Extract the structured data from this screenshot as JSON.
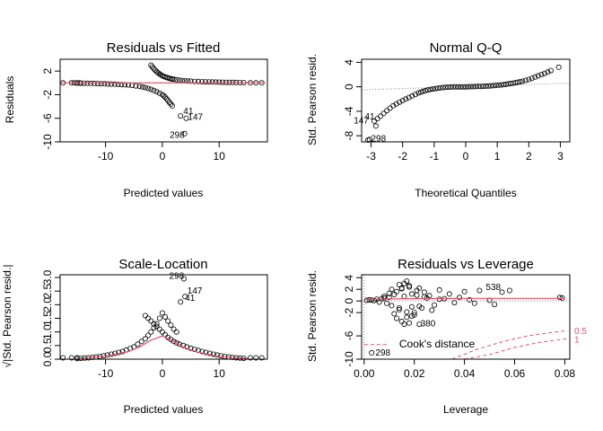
{
  "chart_data": [
    {
      "id": "rvf",
      "type": "scatter",
      "title": "Residuals vs Fitted",
      "xlabel": "Predicted values",
      "ylabel": "Residuals",
      "xlim": [
        -18,
        18.5
      ],
      "ylim": [
        -10,
        4
      ],
      "xticks": [
        -10,
        0,
        10
      ],
      "yticks": [
        -10,
        -6,
        -2,
        2
      ],
      "ref_lines": [
        {
          "y": 0,
          "style": "dotted",
          "color": "#888888"
        }
      ],
      "smooth": {
        "color": "#df536b",
        "x": [
          -18,
          -12,
          -6,
          -2,
          0,
          2,
          6,
          12,
          18
        ],
        "y": [
          0,
          0,
          0,
          0,
          0,
          0,
          0,
          0,
          0
        ]
      },
      "upper_band": {
        "x": [
          -2,
          -1.5,
          -1,
          -0.5,
          0,
          0.5,
          1,
          1.5,
          2,
          3,
          4,
          5,
          7,
          10,
          13,
          15
        ],
        "y": [
          3,
          2.4,
          1.9,
          1.5,
          1.2,
          1.0,
          0.85,
          0.7,
          0.6,
          0.45,
          0.35,
          0.28,
          0.2,
          0.12,
          0.06,
          0.03
        ]
      },
      "lower_band": {
        "x": [
          -15,
          -12,
          -9,
          -6,
          -4,
          -3,
          -2,
          -1,
          0,
          0.5,
          1,
          1.5,
          2
        ],
        "y": [
          -0.05,
          -0.1,
          -0.2,
          -0.35,
          -0.6,
          -0.8,
          -1.1,
          -1.5,
          -2.0,
          -2.4,
          -3.0,
          -3.6,
          -4.2
        ]
      },
      "extra_points": {
        "x": [
          -17.5,
          -16,
          -15.5,
          -15,
          -14.5,
          15.5,
          16.5,
          17.5,
          3.2,
          4.2,
          3.9
        ],
        "y": [
          0,
          0,
          0,
          0,
          0,
          0,
          0,
          0,
          -5.6,
          -6.0,
          -8.6
        ]
      },
      "labels": [
        {
          "text": "41",
          "x": 3.7,
          "y": -5.3
        },
        {
          "text": "147",
          "x": 4.5,
          "y": -6.3
        },
        {
          "text": "298",
          "x": 1.3,
          "y": -9.3
        }
      ]
    },
    {
      "id": "qq",
      "type": "scatter",
      "title": "Normal Q-Q",
      "xlabel": "Theoretical Quantiles",
      "ylabel": "Std. Pearson resid.",
      "xlim": [
        -3.3,
        3.3
      ],
      "ylim": [
        -9,
        4.5
      ],
      "xticks": [
        -3,
        -2,
        -1,
        0,
        1,
        2,
        3
      ],
      "yticks": [
        -8,
        -4,
        0,
        4
      ],
      "ref_line": {
        "x": [
          -3.3,
          3.3
        ],
        "y": [
          -0.5,
          0.6
        ],
        "style": "dotted",
        "color": "#888888"
      },
      "curve": {
        "x": [
          -2.9,
          -2.7,
          -2.5,
          -2.3,
          -2.1,
          -1.9,
          -1.7,
          -1.5,
          -1.2,
          -0.8,
          -0.4,
          0,
          0.4,
          0.8,
          1.2,
          1.5,
          1.8,
          2.0,
          2.2,
          2.4,
          2.6,
          2.8
        ],
        "y": [
          -5.6,
          -4.8,
          -3.9,
          -3.1,
          -2.5,
          -2.0,
          -1.5,
          -1.0,
          -0.5,
          -0.15,
          0,
          0,
          0.05,
          0.15,
          0.35,
          0.6,
          0.9,
          1.2,
          1.6,
          2.0,
          2.4,
          2.9
        ]
      },
      "extra_points": {
        "x": [
          -3.05,
          -2.85,
          2.95,
          -3.1
        ],
        "y": [
          -8.6,
          -6.4,
          3.2,
          -8.7
        ]
      },
      "labels": [
        {
          "text": "41",
          "x": -3.2,
          "y": -5.3
        },
        {
          "text": "147",
          "x": -3.55,
          "y": -6.0
        },
        {
          "text": "298",
          "x": -3.0,
          "y": -8.9
        }
      ]
    },
    {
      "id": "sl",
      "type": "scatter",
      "title": "Scale-Location",
      "xlabel": "Predicted values",
      "ylabel": "√|Std. Pearson resid.|",
      "xlim": [
        -18,
        18.5
      ],
      "ylim": [
        0,
        3.1
      ],
      "xticks": [
        -10,
        0,
        10
      ],
      "yticks": [
        0.0,
        0.5,
        1.0,
        1.5,
        2.0,
        2.5,
        3.0
      ],
      "smooth": {
        "color": "#df536b",
        "x": [
          -15,
          -12,
          -9,
          -6,
          -4,
          -2,
          0,
          2,
          4,
          6,
          9,
          12,
          15
        ],
        "y": [
          0.04,
          0.08,
          0.15,
          0.28,
          0.45,
          0.7,
          0.85,
          0.65,
          0.42,
          0.27,
          0.14,
          0.07,
          0.03
        ]
      },
      "band_left": {
        "x": [
          -15,
          -13,
          -11,
          -9,
          -7,
          -5,
          -3,
          -2,
          -1,
          0,
          1,
          2,
          3
        ],
        "y": [
          0.02,
          0.05,
          0.1,
          0.18,
          0.28,
          0.45,
          0.75,
          1.0,
          1.3,
          1.7,
          1.4,
          1.1,
          0.9
        ]
      },
      "band_right": {
        "x": [
          -3,
          -2,
          -1,
          0,
          1,
          2,
          3,
          5,
          7,
          9,
          11,
          13,
          15
        ],
        "y": [
          1.6,
          1.4,
          1.2,
          1.0,
          0.8,
          0.65,
          0.55,
          0.4,
          0.28,
          0.18,
          0.1,
          0.05,
          0.02
        ]
      },
      "extra_points": {
        "x": [
          -17.5,
          -16,
          -15,
          15.5,
          16.5,
          17.5,
          3.2,
          4.0,
          3.8
        ],
        "y": [
          0.05,
          0.05,
          0.05,
          0.05,
          0.05,
          0.05,
          2.1,
          2.3,
          2.95
        ]
      },
      "labels": [
        {
          "text": "298",
          "x": 1.2,
          "y": 2.95
        },
        {
          "text": "147",
          "x": 4.4,
          "y": 2.4
        },
        {
          "text": "41",
          "x": 4.0,
          "y": 2.15
        }
      ]
    },
    {
      "id": "rvl",
      "type": "scatter",
      "title": "Residuals vs Leverage",
      "xlabel": "Leverage",
      "ylabel": "Std. Pearson resid.",
      "xlim": [
        -0.001,
        0.082
      ],
      "ylim": [
        -10,
        4.5
      ],
      "xticks": [
        0.0,
        0.02,
        0.04,
        0.06,
        0.08
      ],
      "yticks": [
        -10,
        -6,
        -2,
        0,
        2,
        4
      ],
      "ytick_labels": [
        "-10",
        "-6",
        "-2",
        "0",
        "2",
        "4"
      ],
      "ref_lines": [
        {
          "y": 0,
          "style": "dotted",
          "color": "#888888"
        },
        {
          "x": 0,
          "style": "dotted",
          "color": "#888888"
        }
      ],
      "smooth": {
        "color": "#df536b",
        "x": [
          0,
          0.01,
          0.02,
          0.04,
          0.06,
          0.08
        ],
        "y": [
          0.3,
          0.35,
          0.4,
          0.45,
          0.45,
          0.45
        ]
      },
      "cook_curves": [
        {
          "label": "0.5",
          "x": [
            0.035,
            0.045,
            0.055,
            0.065,
            0.075,
            0.081
          ],
          "y": [
            -10.5,
            -8.3,
            -7.0,
            -6.0,
            -5.4,
            -5.1
          ]
        },
        {
          "label": "1",
          "x": [
            0.04,
            0.05,
            0.06,
            0.07,
            0.081
          ],
          "y": [
            -10.5,
            -9.2,
            -8.0,
            -7.1,
            -6.5
          ]
        },
        {
          "label": "",
          "x": [
            0.0,
            0.009
          ],
          "y": [
            -7.5,
            -7.5
          ]
        }
      ],
      "points": {
        "x": [
          0.001,
          0.002,
          0.003,
          0.004,
          0.005,
          0.006,
          0.007,
          0.008,
          0.009,
          0.01,
          0.011,
          0.012,
          0.013,
          0.014,
          0.015,
          0.016,
          0.017,
          0.018,
          0.019,
          0.02,
          0.022,
          0.024,
          0.026,
          0.028,
          0.03,
          0.032,
          0.034,
          0.036,
          0.038,
          0.04,
          0.042,
          0.044,
          0.046,
          0.05,
          0.052,
          0.055,
          0.058,
          0.078,
          0.079,
          0.012,
          0.013,
          0.014,
          0.015,
          0.016,
          0.017,
          0.018,
          0.019,
          0.02,
          0.021,
          0.022,
          0.024,
          0.027,
          0.03,
          0.016,
          0.018,
          0.019,
          0.014,
          0.015,
          0.017,
          0.021,
          0.023,
          0.025,
          0.008,
          0.01,
          0.011
        ],
        "y": [
          0.1,
          0.2,
          0.15,
          0.05,
          0.3,
          -0.2,
          0.4,
          0.5,
          -0.4,
          0.6,
          -0.8,
          1.1,
          1.6,
          -1.2,
          2.1,
          0.8,
          -1.9,
          2.6,
          1.2,
          -2.4,
          2.2,
          1.5,
          0.9,
          -0.7,
          1.9,
          0.4,
          1.2,
          -0.3,
          0.6,
          1.6,
          0.2,
          -0.4,
          1.8,
          0.1,
          -0.6,
          1.5,
          1.8,
          0.6,
          0.5,
          -2.2,
          -3.0,
          -1.5,
          -3.5,
          -4.0,
          -2.8,
          -3.8,
          -1.0,
          -2.0,
          1.0,
          -0.9,
          0.7,
          -1.6,
          0.3,
          3.0,
          2.4,
          -2.6,
          2.8,
          2.2,
          3.4,
          1.8,
          -1.2,
          0.5,
          0.8,
          1.3,
          2.0
        ]
      },
      "extra_points": {
        "x": [
          0.003,
          0.022
        ],
        "y": [
          -8.9,
          -4.0
        ]
      },
      "labels": [
        {
          "text": "538",
          "x": 0.0485,
          "y": 1.9
        },
        {
          "text": "380",
          "x": 0.0225,
          "y": -4.4
        },
        {
          "text": "298",
          "x": 0.0045,
          "y": -9.4
        }
      ],
      "cook_label": "Cook's distance",
      "cook_label_pos": {
        "x": 0.014,
        "y": -8.0
      }
    }
  ]
}
